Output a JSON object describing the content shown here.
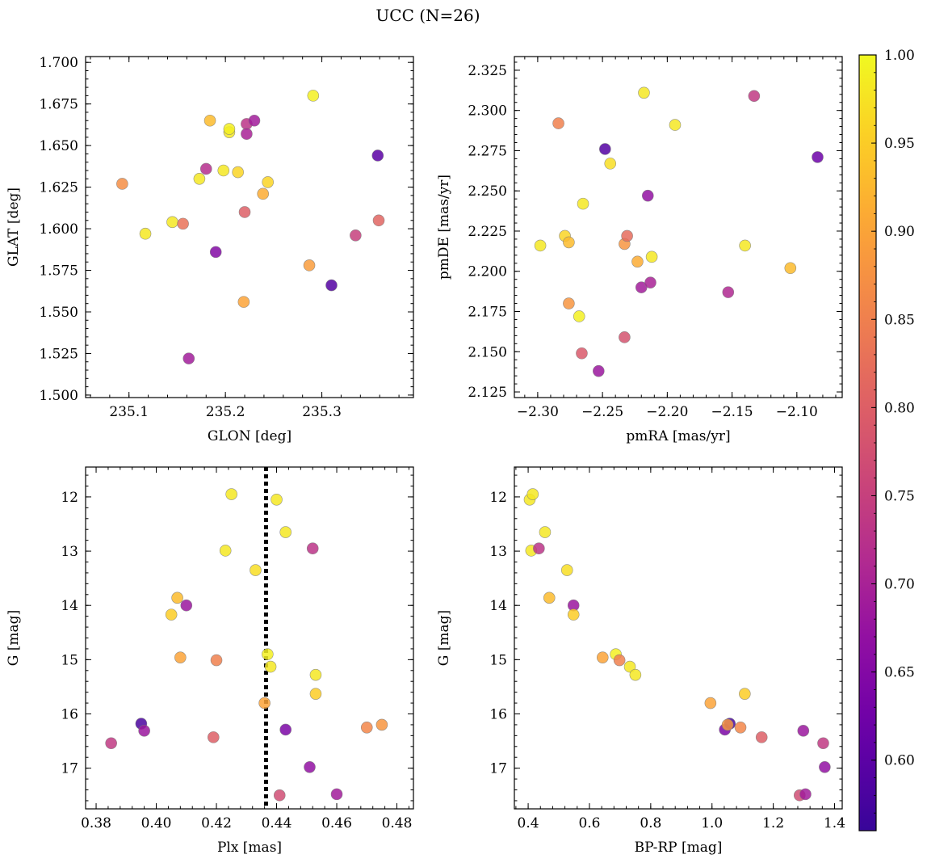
{
  "figure": {
    "title": "UCC (N=26)"
  },
  "colorbar": {
    "colormap": "plasma",
    "range": [
      0.56,
      1.0
    ],
    "ticks": [
      0.6,
      0.65,
      0.7,
      0.75,
      0.8,
      0.85,
      0.9,
      0.95,
      1.0
    ],
    "tick_labels": [
      "0.60",
      "0.65",
      "0.70",
      "0.75",
      "0.80",
      "0.85",
      "0.90",
      "0.95",
      "1.00"
    ]
  },
  "chart_data": [
    {
      "type": "scatter",
      "id": "glon-glat",
      "xlabel": "GLON [deg]",
      "ylabel": "GLAT [deg]",
      "xlim": [
        235.055,
        235.395
      ],
      "ylim": [
        1.4985,
        1.7035
      ],
      "xticks": [
        235.1,
        235.2,
        235.3
      ],
      "xtick_labels": [
        "235.1",
        "235.2",
        "235.3"
      ],
      "yticks": [
        1.5,
        1.525,
        1.55,
        1.575,
        1.6,
        1.625,
        1.65,
        1.675,
        1.7
      ],
      "ytick_labels": [
        "1.500",
        "1.525",
        "1.550",
        "1.575",
        "1.600",
        "1.625",
        "1.650",
        "1.675",
        "1.700"
      ],
      "invert_y": false,
      "grid": false,
      "points": [
        {
          "x": 235.093,
          "y": 1.627,
          "c": 0.87
        },
        {
          "x": 235.117,
          "y": 1.597,
          "c": 0.98
        },
        {
          "x": 235.145,
          "y": 1.604,
          "c": 0.98
        },
        {
          "x": 235.156,
          "y": 1.603,
          "c": 0.83
        },
        {
          "x": 235.162,
          "y": 1.522,
          "c": 0.69
        },
        {
          "x": 235.173,
          "y": 1.63,
          "c": 0.98
        },
        {
          "x": 235.18,
          "y": 1.636,
          "c": 0.72
        },
        {
          "x": 235.184,
          "y": 1.665,
          "c": 0.93
        },
        {
          "x": 235.19,
          "y": 1.586,
          "c": 0.65
        },
        {
          "x": 235.198,
          "y": 1.635,
          "c": 0.98
        },
        {
          "x": 235.204,
          "y": 1.658,
          "c": 0.98
        },
        {
          "x": 235.204,
          "y": 1.66,
          "c": 0.99
        },
        {
          "x": 235.213,
          "y": 1.634,
          "c": 0.96
        },
        {
          "x": 235.219,
          "y": 1.556,
          "c": 0.9
        },
        {
          "x": 235.22,
          "y": 1.61,
          "c": 0.8
        },
        {
          "x": 235.222,
          "y": 1.663,
          "c": 0.73
        },
        {
          "x": 235.222,
          "y": 1.657,
          "c": 0.7
        },
        {
          "x": 235.23,
          "y": 1.665,
          "c": 0.69
        },
        {
          "x": 235.239,
          "y": 1.621,
          "c": 0.91
        },
        {
          "x": 235.244,
          "y": 1.628,
          "c": 0.96
        },
        {
          "x": 235.287,
          "y": 1.578,
          "c": 0.89
        },
        {
          "x": 235.291,
          "y": 1.68,
          "c": 0.99
        },
        {
          "x": 235.31,
          "y": 1.566,
          "c": 0.59
        },
        {
          "x": 235.335,
          "y": 1.596,
          "c": 0.75
        },
        {
          "x": 235.358,
          "y": 1.644,
          "c": 0.6
        },
        {
          "x": 235.359,
          "y": 1.605,
          "c": 0.81
        }
      ]
    },
    {
      "type": "scatter",
      "id": "pmra-pmde",
      "xlabel": "pmRA [mas/yr]",
      "ylabel": "pmDE [mas/yr]",
      "xlim": [
        -2.318,
        -2.065
      ],
      "ylim": [
        2.1215,
        2.3335
      ],
      "xticks": [
        -2.3,
        -2.25,
        -2.2,
        -2.15,
        -2.1
      ],
      "xtick_labels": [
        "−2.30",
        "−2.25",
        "−2.20",
        "−2.15",
        "−2.10"
      ],
      "yticks": [
        2.125,
        2.15,
        2.175,
        2.2,
        2.225,
        2.25,
        2.275,
        2.3,
        2.325
      ],
      "ytick_labels": [
        "2.125",
        "2.150",
        "2.175",
        "2.200",
        "2.225",
        "2.250",
        "2.275",
        "2.300",
        "2.325"
      ],
      "invert_y": false,
      "grid": false,
      "points": [
        {
          "x": -2.298,
          "y": 2.216,
          "c": 0.98
        },
        {
          "x": -2.284,
          "y": 2.292,
          "c": 0.85
        },
        {
          "x": -2.279,
          "y": 2.222,
          "c": 0.96
        },
        {
          "x": -2.276,
          "y": 2.218,
          "c": 0.93
        },
        {
          "x": -2.276,
          "y": 2.18,
          "c": 0.88
        },
        {
          "x": -2.268,
          "y": 2.172,
          "c": 0.99
        },
        {
          "x": -2.266,
          "y": 2.149,
          "c": 0.79
        },
        {
          "x": -2.265,
          "y": 2.242,
          "c": 0.98
        },
        {
          "x": -2.253,
          "y": 2.138,
          "c": 0.68
        },
        {
          "x": -2.248,
          "y": 2.276,
          "c": 0.59
        },
        {
          "x": -2.244,
          "y": 2.267,
          "c": 0.97
        },
        {
          "x": -2.233,
          "y": 2.159,
          "c": 0.78
        },
        {
          "x": -2.233,
          "y": 2.217,
          "c": 0.88
        },
        {
          "x": -2.231,
          "y": 2.222,
          "c": 0.82
        },
        {
          "x": -2.223,
          "y": 2.206,
          "c": 0.91
        },
        {
          "x": -2.22,
          "y": 2.19,
          "c": 0.69
        },
        {
          "x": -2.218,
          "y": 2.311,
          "c": 0.98
        },
        {
          "x": -2.215,
          "y": 2.247,
          "c": 0.67
        },
        {
          "x": -2.213,
          "y": 2.193,
          "c": 0.7
        },
        {
          "x": -2.212,
          "y": 2.209,
          "c": 0.98
        },
        {
          "x": -2.194,
          "y": 2.291,
          "c": 0.98
        },
        {
          "x": -2.153,
          "y": 2.187,
          "c": 0.71
        },
        {
          "x": -2.14,
          "y": 2.216,
          "c": 0.98
        },
        {
          "x": -2.133,
          "y": 2.309,
          "c": 0.74
        },
        {
          "x": -2.105,
          "y": 2.202,
          "c": 0.93
        },
        {
          "x": -2.084,
          "y": 2.271,
          "c": 0.62
        }
      ]
    },
    {
      "type": "scatter",
      "id": "plx-g",
      "xlabel": "Plx [mas]",
      "ylabel": "G [mag]",
      "xlim": [
        0.3765,
        0.4855
      ],
      "ylim": [
        11.45,
        17.75
      ],
      "xticks": [
        0.38,
        0.4,
        0.42,
        0.44,
        0.46,
        0.48
      ],
      "xtick_labels": [
        "0.38",
        "0.40",
        "0.42",
        "0.44",
        "0.46",
        "0.48"
      ],
      "yticks": [
        12,
        13,
        14,
        15,
        16,
        17
      ],
      "ytick_labels": [
        "12",
        "13",
        "14",
        "15",
        "16",
        "17"
      ],
      "invert_y": true,
      "grid": false,
      "vline": 0.4365,
      "points": [
        {
          "x": 0.385,
          "y": 16.54,
          "c": 0.74
        },
        {
          "x": 0.395,
          "y": 16.18,
          "c": 0.58
        },
        {
          "x": 0.396,
          "y": 16.31,
          "c": 0.68
        },
        {
          "x": 0.405,
          "y": 14.17,
          "c": 0.95
        },
        {
          "x": 0.407,
          "y": 13.86,
          "c": 0.93
        },
        {
          "x": 0.408,
          "y": 14.96,
          "c": 0.9
        },
        {
          "x": 0.41,
          "y": 14.0,
          "c": 0.68
        },
        {
          "x": 0.419,
          "y": 16.43,
          "c": 0.8
        },
        {
          "x": 0.42,
          "y": 15.01,
          "c": 0.85
        },
        {
          "x": 0.423,
          "y": 12.99,
          "c": 0.98
        },
        {
          "x": 0.425,
          "y": 11.95,
          "c": 0.98
        },
        {
          "x": 0.433,
          "y": 13.35,
          "c": 0.97
        },
        {
          "x": 0.436,
          "y": 15.8,
          "c": 0.9
        },
        {
          "x": 0.437,
          "y": 14.9,
          "c": 0.99
        },
        {
          "x": 0.438,
          "y": 15.13,
          "c": 0.98
        },
        {
          "x": 0.44,
          "y": 12.05,
          "c": 0.98
        },
        {
          "x": 0.441,
          "y": 17.5,
          "c": 0.77
        },
        {
          "x": 0.443,
          "y": 12.65,
          "c": 0.98
        },
        {
          "x": 0.443,
          "y": 16.29,
          "c": 0.64
        },
        {
          "x": 0.451,
          "y": 16.98,
          "c": 0.67
        },
        {
          "x": 0.452,
          "y": 12.95,
          "c": 0.73
        },
        {
          "x": 0.453,
          "y": 15.28,
          "c": 0.98
        },
        {
          "x": 0.453,
          "y": 15.63,
          "c": 0.95
        },
        {
          "x": 0.46,
          "y": 17.48,
          "c": 0.69
        },
        {
          "x": 0.47,
          "y": 16.25,
          "c": 0.86
        },
        {
          "x": 0.475,
          "y": 16.2,
          "c": 0.88
        }
      ]
    },
    {
      "type": "scatter",
      "id": "bprp-g",
      "xlabel": "BP-RP [mag]",
      "ylabel": "G [mag]",
      "xlim": [
        0.355,
        1.425
      ],
      "ylim": [
        11.45,
        17.75
      ],
      "xticks": [
        0.4,
        0.6,
        0.8,
        1.0,
        1.2,
        1.4
      ],
      "xtick_labels": [
        "0.4",
        "0.6",
        "0.8",
        "1.0",
        "1.2",
        "1.4"
      ],
      "yticks": [
        12,
        13,
        14,
        15,
        16,
        17
      ],
      "ytick_labels": [
        "12",
        "13",
        "14",
        "15",
        "16",
        "17"
      ],
      "invert_y": true,
      "grid": false,
      "points": [
        {
          "x": 0.405,
          "y": 12.05,
          "c": 0.98
        },
        {
          "x": 0.415,
          "y": 11.95,
          "c": 0.98
        },
        {
          "x": 0.41,
          "y": 12.99,
          "c": 0.98
        },
        {
          "x": 0.435,
          "y": 12.95,
          "c": 0.73
        },
        {
          "x": 0.455,
          "y": 12.65,
          "c": 0.98
        },
        {
          "x": 0.527,
          "y": 13.35,
          "c": 0.97
        },
        {
          "x": 0.469,
          "y": 13.86,
          "c": 0.93
        },
        {
          "x": 0.548,
          "y": 14.0,
          "c": 0.68
        },
        {
          "x": 0.548,
          "y": 14.17,
          "c": 0.95
        },
        {
          "x": 0.643,
          "y": 14.96,
          "c": 0.9
        },
        {
          "x": 0.686,
          "y": 14.9,
          "c": 0.99
        },
        {
          "x": 0.698,
          "y": 15.01,
          "c": 0.85
        },
        {
          "x": 0.732,
          "y": 15.13,
          "c": 0.98
        },
        {
          "x": 0.75,
          "y": 15.28,
          "c": 0.98
        },
        {
          "x": 0.995,
          "y": 15.8,
          "c": 0.9
        },
        {
          "x": 1.107,
          "y": 15.63,
          "c": 0.95
        },
        {
          "x": 1.042,
          "y": 16.29,
          "c": 0.64
        },
        {
          "x": 1.058,
          "y": 16.18,
          "c": 0.58
        },
        {
          "x": 1.051,
          "y": 16.2,
          "c": 0.88
        },
        {
          "x": 1.093,
          "y": 16.25,
          "c": 0.86
        },
        {
          "x": 1.162,
          "y": 16.43,
          "c": 0.8
        },
        {
          "x": 1.298,
          "y": 16.31,
          "c": 0.68
        },
        {
          "x": 1.363,
          "y": 16.54,
          "c": 0.74
        },
        {
          "x": 1.368,
          "y": 16.98,
          "c": 0.67
        },
        {
          "x": 1.286,
          "y": 17.5,
          "c": 0.77
        },
        {
          "x": 1.305,
          "y": 17.48,
          "c": 0.69
        }
      ]
    }
  ]
}
